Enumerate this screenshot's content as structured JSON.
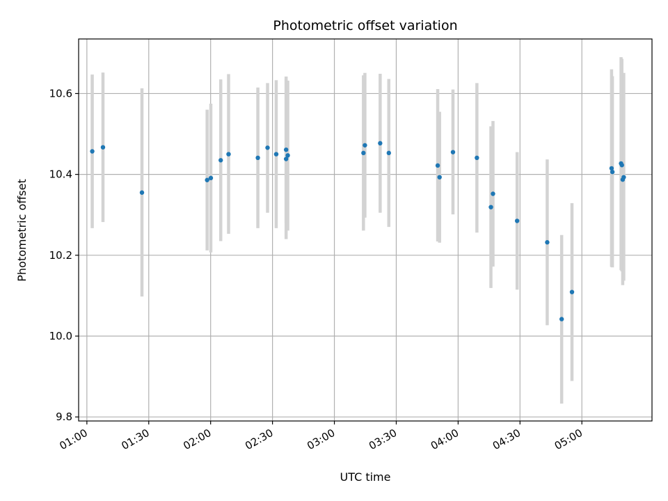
{
  "chart_data": {
    "type": "scatter",
    "title": "Photometric offset variation",
    "xlabel": "UTC time",
    "ylabel": "Photometric offset",
    "x_unit": "UTC time (HH:MM)",
    "xlim": [
      "00:56",
      "05:34"
    ],
    "ylim": [
      9.79,
      10.735
    ],
    "grid": true,
    "x_ticks": [
      "01:00",
      "01:30",
      "02:00",
      "02:30",
      "03:00",
      "03:30",
      "04:00",
      "04:30",
      "05:00"
    ],
    "y_ticks": [
      9.8,
      10.0,
      10.2,
      10.4,
      10.6
    ],
    "y_tick_labels": [
      "9.8",
      "10.0",
      "10.2",
      "10.4",
      "10.6"
    ],
    "marker_color": "#1f77b4",
    "errorbar_color": "#d3d3d3",
    "points": [
      {
        "x": "01:02:36",
        "y": 10.457,
        "low": 10.267,
        "high": 10.647
      },
      {
        "x": "01:07:48",
        "y": 10.467,
        "low": 10.282,
        "high": 10.652
      },
      {
        "x": "01:26:42",
        "y": 10.355,
        "low": 10.098,
        "high": 10.613
      },
      {
        "x": "01:58:18",
        "y": 10.386,
        "low": 10.212,
        "high": 10.56
      },
      {
        "x": "02:00:06",
        "y": 10.391,
        "low": 10.207,
        "high": 10.575
      },
      {
        "x": "02:04:54",
        "y": 10.435,
        "low": 10.235,
        "high": 10.635
      },
      {
        "x": "02:08:42",
        "y": 10.45,
        "low": 10.253,
        "high": 10.648
      },
      {
        "x": "02:22:54",
        "y": 10.441,
        "low": 10.267,
        "high": 10.615
      },
      {
        "x": "02:27:36",
        "y": 10.466,
        "low": 10.305,
        "high": 10.626
      },
      {
        "x": "02:31:48",
        "y": 10.45,
        "low": 10.267,
        "high": 10.633
      },
      {
        "x": "02:36:36",
        "y": 10.461,
        "low": 10.28,
        "high": 10.642
      },
      {
        "x": "02:36:36",
        "y": 10.438,
        "low": 10.24,
        "high": 10.636
      },
      {
        "x": "02:37:24",
        "y": 10.447,
        "low": 10.261,
        "high": 10.632
      },
      {
        "x": "03:14:06",
        "y": 10.453,
        "low": 10.261,
        "high": 10.645
      },
      {
        "x": "03:14:48",
        "y": 10.472,
        "low": 10.293,
        "high": 10.651
      },
      {
        "x": "03:22:12",
        "y": 10.477,
        "low": 10.305,
        "high": 10.649
      },
      {
        "x": "03:26:24",
        "y": 10.453,
        "low": 10.27,
        "high": 10.636
      },
      {
        "x": "03:50:06",
        "y": 10.422,
        "low": 10.234,
        "high": 10.611
      },
      {
        "x": "03:51:00",
        "y": 10.393,
        "low": 10.231,
        "high": 10.555
      },
      {
        "x": "03:57:30",
        "y": 10.455,
        "low": 10.301,
        "high": 10.61
      },
      {
        "x": "04:09:06",
        "y": 10.441,
        "low": 10.256,
        "high": 10.626
      },
      {
        "x": "04:15:54",
        "y": 10.319,
        "low": 10.119,
        "high": 10.519
      },
      {
        "x": "04:16:54",
        "y": 10.352,
        "low": 10.172,
        "high": 10.532
      },
      {
        "x": "04:28:36",
        "y": 10.285,
        "low": 10.115,
        "high": 10.455
      },
      {
        "x": "04:43:12",
        "y": 10.232,
        "low": 10.027,
        "high": 10.437
      },
      {
        "x": "04:50:12",
        "y": 10.042,
        "low": 9.833,
        "high": 10.25
      },
      {
        "x": "04:55:12",
        "y": 10.109,
        "low": 9.889,
        "high": 10.329
      },
      {
        "x": "05:14:24",
        "y": 10.415,
        "low": 10.171,
        "high": 10.66
      },
      {
        "x": "05:14:48",
        "y": 10.406,
        "low": 10.17,
        "high": 10.643
      },
      {
        "x": "05:19:00",
        "y": 10.427,
        "low": 10.163,
        "high": 10.69
      },
      {
        "x": "05:19:24",
        "y": 10.423,
        "low": 10.16,
        "high": 10.686
      },
      {
        "x": "05:19:48",
        "y": 10.387,
        "low": 10.126,
        "high": 10.65
      },
      {
        "x": "05:20:18",
        "y": 10.393,
        "low": 10.137,
        "high": 10.651
      }
    ]
  }
}
